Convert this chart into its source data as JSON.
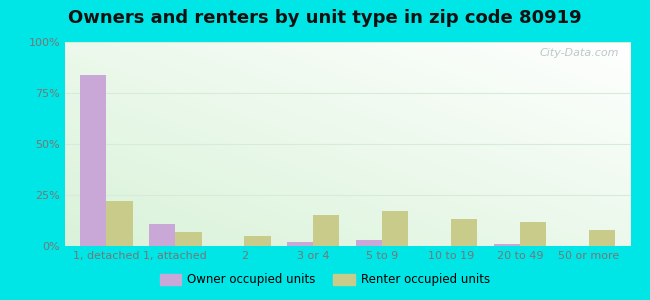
{
  "title": "Owners and renters by unit type in zip code 80919",
  "categories": [
    "1, detached",
    "1, attached",
    "2",
    "3 or 4",
    "5 to 9",
    "10 to 19",
    "20 to 49",
    "50 or more"
  ],
  "owner_values": [
    84,
    11,
    0,
    2,
    3,
    0,
    1,
    0
  ],
  "renter_values": [
    22,
    7,
    5,
    15,
    17,
    13,
    12,
    8
  ],
  "owner_color": "#c9a8d8",
  "renter_color": "#c8cb8a",
  "background_color": "#00e5e5",
  "title_fontsize": 13,
  "legend_labels": [
    "Owner occupied units",
    "Renter occupied units"
  ],
  "ylim": [
    0,
    100
  ],
  "yticks": [
    0,
    25,
    50,
    75,
    100
  ],
  "ytick_labels": [
    "0%",
    "25%",
    "50%",
    "75%",
    "100%"
  ],
  "watermark": "City-Data.com",
  "bar_width": 0.38,
  "grad_colors": [
    "#e8f5e0",
    "#f5fff8",
    "#ffffff"
  ],
  "grid_color": "#d8ead8",
  "tick_color": "#777777",
  "label_fontsize": 8
}
